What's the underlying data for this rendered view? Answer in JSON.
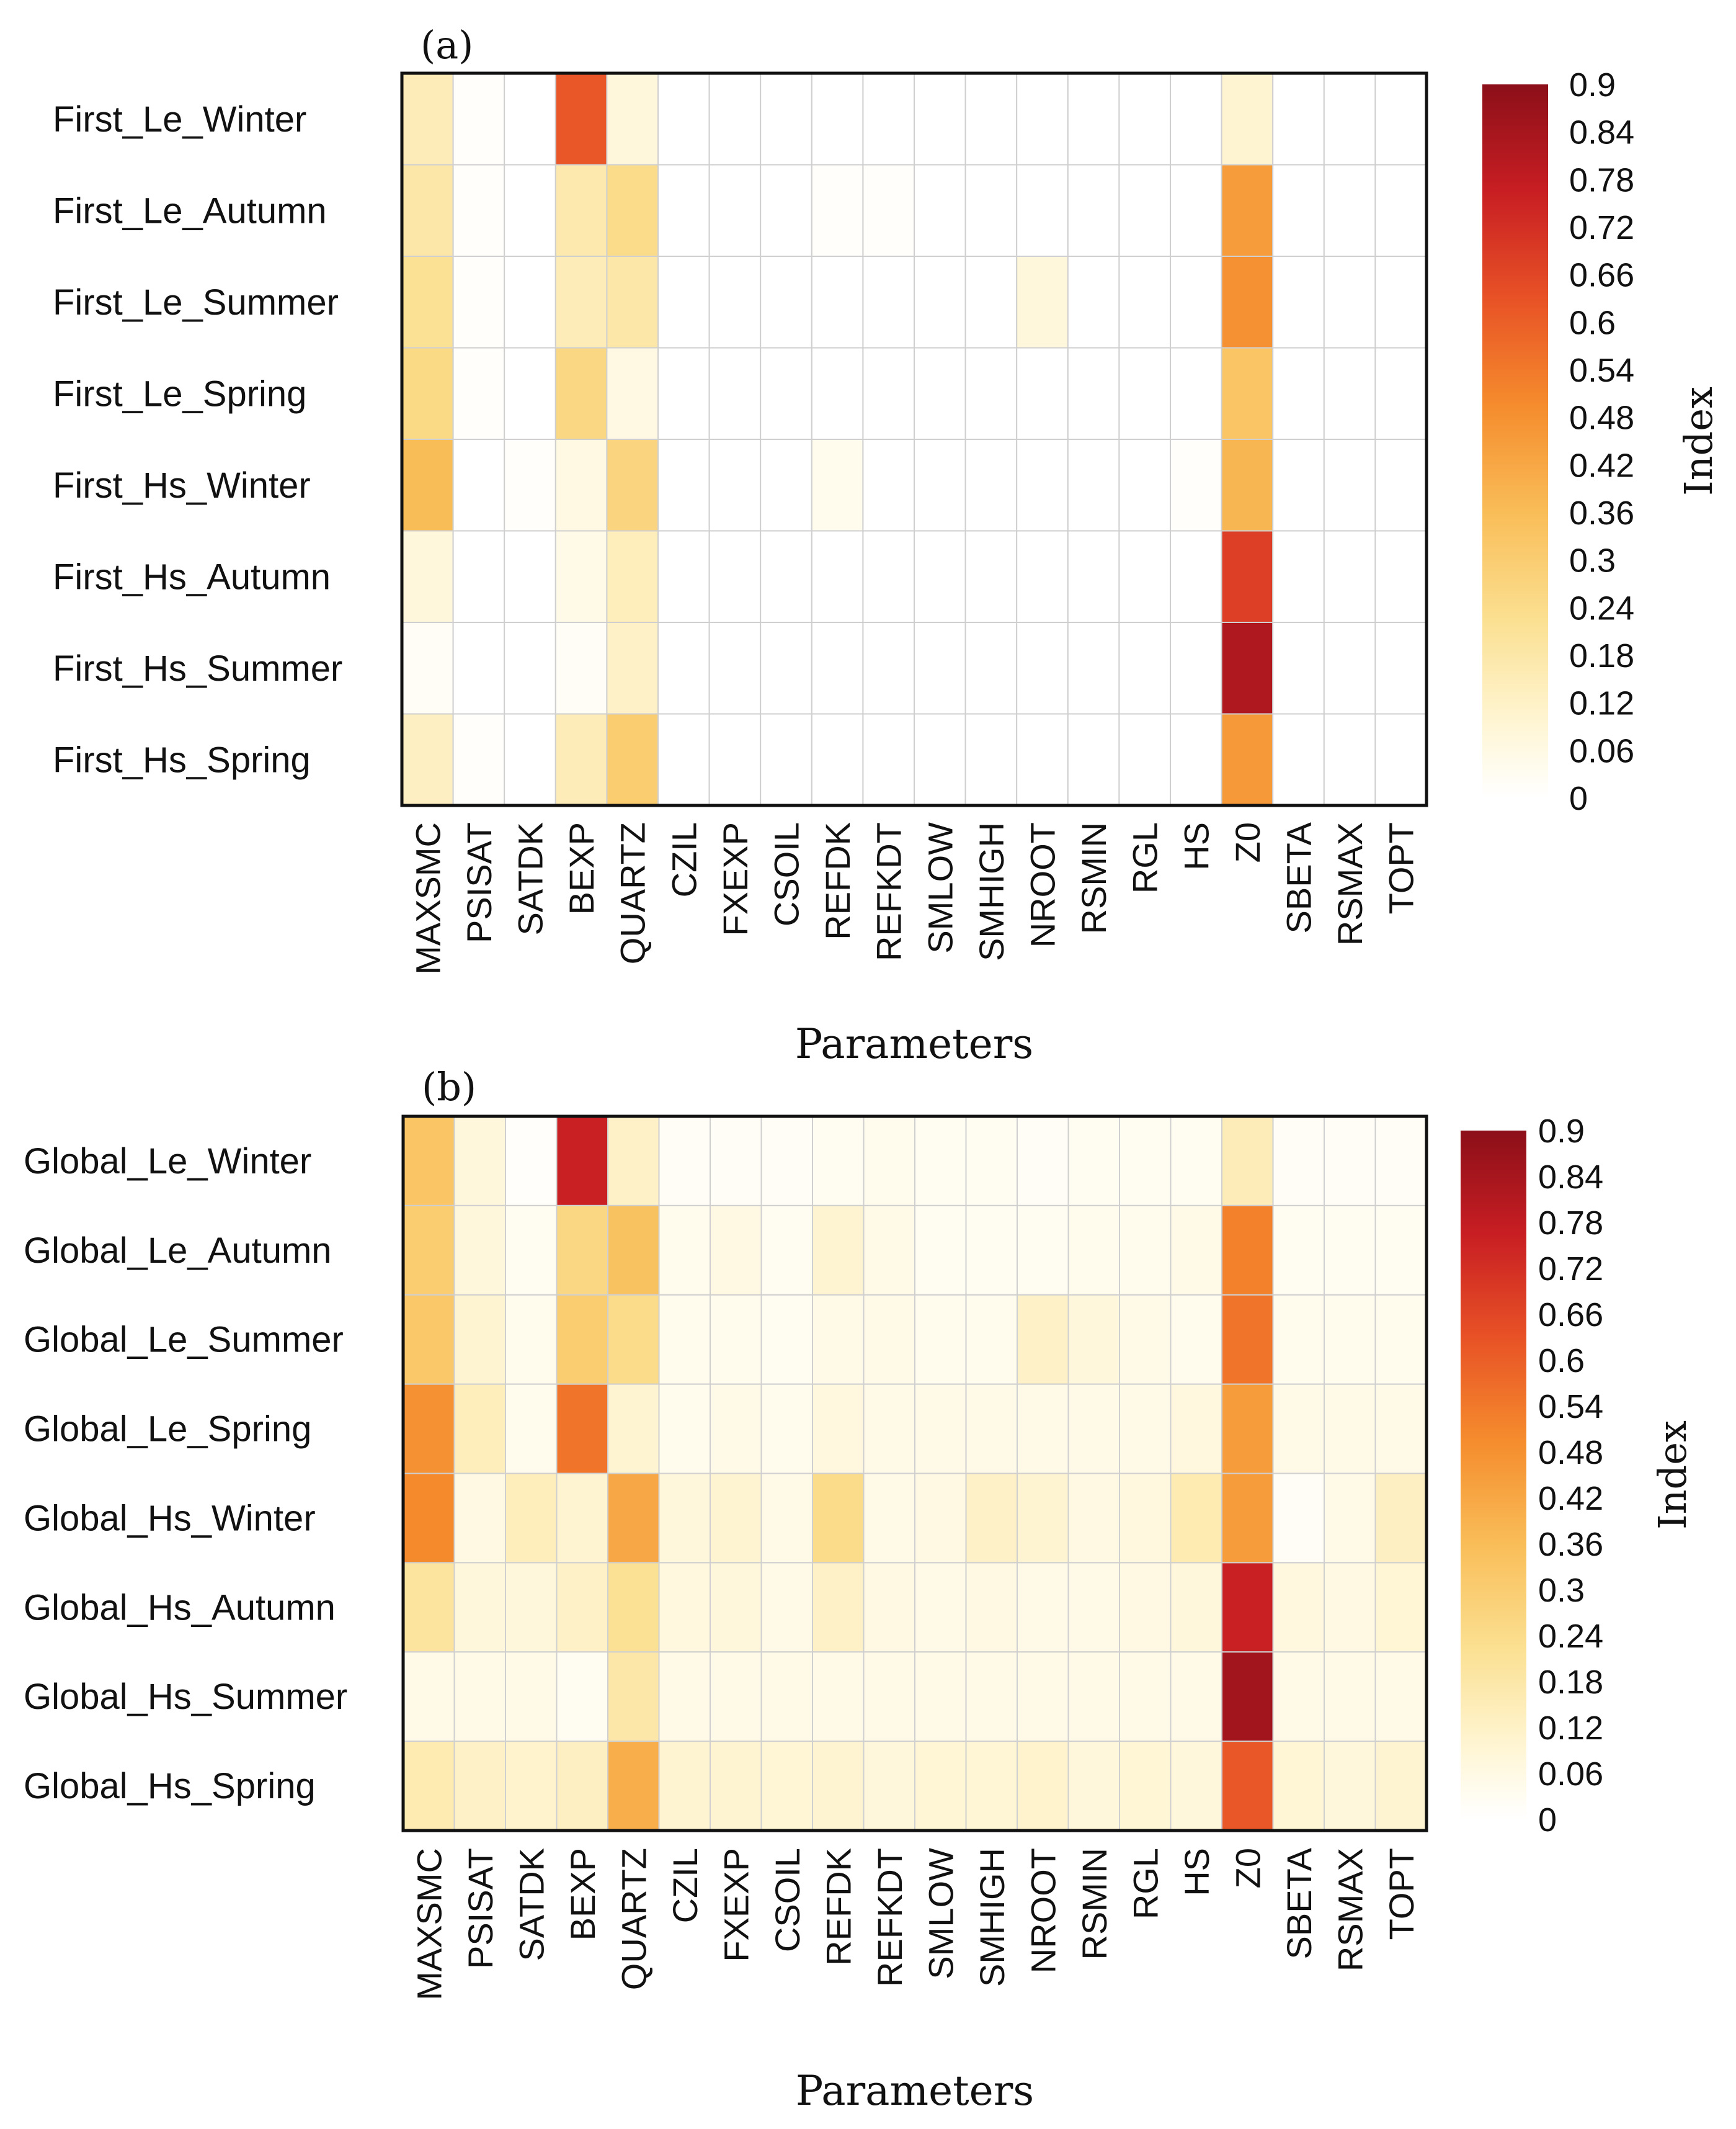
{
  "figure": {
    "panels": [
      "(a)",
      "(b)"
    ]
  },
  "chart_data": [
    {
      "type": "heatmap",
      "panel_label": "(a)",
      "title": "",
      "xlabel": "Parameters",
      "ylabel": "",
      "colorbar_label": "Index",
      "vmin": 0,
      "vmax": 0.9,
      "colorbar_ticks": [
        "0",
        "0.06",
        "0.12",
        "0.18",
        "0.24",
        "0.3",
        "0.36",
        "0.42",
        "0.48",
        "0.54",
        "0.6",
        "0.66",
        "0.72",
        "0.78",
        "0.84",
        "0.9"
      ],
      "columns": [
        "MAXSMC",
        "PSISAT",
        "SATDK",
        "BEXP",
        "QUARTZ",
        "CZIL",
        "FXEXP",
        "CSOIL",
        "REFDK",
        "REFKDT",
        "SMLOW",
        "SMHIGH",
        "NROOT",
        "RSMIN",
        "RGL",
        "HS",
        "Z0",
        "SBETA",
        "RSMAX",
        "TOPT"
      ],
      "rows": [
        "First_Le_Winter",
        "First_Le_Autumn",
        "First_Le_Summer",
        "First_Le_Spring",
        "First_Hs_Winter",
        "First_Hs_Autumn",
        "First_Hs_Summer",
        "First_Hs_Spring"
      ],
      "values": [
        [
          0.15,
          0.01,
          0.0,
          0.62,
          0.08,
          0.0,
          0.0,
          0.0,
          0.0,
          0.0,
          0.0,
          0.0,
          0.0,
          0.0,
          0.0,
          0.0,
          0.1,
          0.0,
          0.0,
          0.0
        ],
        [
          0.18,
          0.01,
          0.0,
          0.17,
          0.24,
          0.0,
          0.0,
          0.0,
          0.01,
          0.01,
          0.0,
          0.0,
          0.0,
          0.0,
          0.0,
          0.0,
          0.45,
          0.0,
          0.0,
          0.0
        ],
        [
          0.22,
          0.01,
          0.0,
          0.15,
          0.18,
          0.0,
          0.0,
          0.0,
          0.0,
          0.0,
          0.0,
          0.0,
          0.08,
          0.0,
          0.0,
          0.0,
          0.48,
          0.0,
          0.0,
          0.0
        ],
        [
          0.25,
          0.01,
          0.0,
          0.26,
          0.06,
          0.0,
          0.0,
          0.0,
          0.0,
          0.0,
          0.0,
          0.0,
          0.0,
          0.0,
          0.0,
          0.0,
          0.33,
          0.0,
          0.0,
          0.0
        ],
        [
          0.36,
          0.0,
          0.01,
          0.06,
          0.27,
          0.0,
          0.0,
          0.0,
          0.04,
          0.0,
          0.0,
          0.0,
          0.0,
          0.0,
          0.0,
          0.01,
          0.38,
          0.0,
          0.0,
          0.0
        ],
        [
          0.08,
          0.0,
          0.0,
          0.05,
          0.14,
          0.0,
          0.0,
          0.0,
          0.0,
          0.0,
          0.0,
          0.0,
          0.0,
          0.0,
          0.0,
          0.0,
          0.68,
          0.0,
          0.0,
          0.0
        ],
        [
          0.02,
          0.0,
          0.0,
          0.02,
          0.12,
          0.0,
          0.0,
          0.0,
          0.0,
          0.0,
          0.0,
          0.0,
          0.0,
          0.0,
          0.0,
          0.0,
          0.82,
          0.0,
          0.0,
          0.0
        ],
        [
          0.13,
          0.01,
          0.0,
          0.15,
          0.3,
          0.0,
          0.0,
          0.0,
          0.0,
          0.0,
          0.0,
          0.0,
          0.0,
          0.0,
          0.0,
          0.0,
          0.46,
          0.0,
          0.0,
          0.0
        ]
      ]
    },
    {
      "type": "heatmap",
      "panel_label": "(b)",
      "title": "",
      "xlabel": "Parameters",
      "ylabel": "",
      "colorbar_label": "Index",
      "vmin": 0,
      "vmax": 0.9,
      "colorbar_ticks": [
        "0",
        "0.06",
        "0.12",
        "0.18",
        "0.24",
        "0.3",
        "0.36",
        "0.42",
        "0.48",
        "0.54",
        "0.6",
        "0.66",
        "0.72",
        "0.78",
        "0.84",
        "0.9"
      ],
      "columns": [
        "MAXSMC",
        "PSISAT",
        "SATDK",
        "BEXP",
        "QUARTZ",
        "CZIL",
        "FXEXP",
        "CSOIL",
        "REFDK",
        "REFKDT",
        "SMLOW",
        "SMHIGH",
        "NROOT",
        "RSMIN",
        "RGL",
        "HS",
        "Z0",
        "SBETA",
        "RSMAX",
        "TOPT"
      ],
      "rows": [
        "Global_Le_Winter",
        "Global_Le_Autumn",
        "Global_Le_Summer",
        "Global_Le_Spring",
        "Global_Hs_Winter",
        "Global_Hs_Autumn",
        "Global_Hs_Summer",
        "Global_Hs_Spring"
      ],
      "values": [
        [
          0.33,
          0.08,
          0.01,
          0.76,
          0.12,
          0.02,
          0.02,
          0.02,
          0.03,
          0.04,
          0.03,
          0.03,
          0.02,
          0.03,
          0.03,
          0.03,
          0.15,
          0.02,
          0.02,
          0.02
        ],
        [
          0.3,
          0.08,
          0.03,
          0.26,
          0.34,
          0.04,
          0.06,
          0.03,
          0.1,
          0.05,
          0.03,
          0.03,
          0.03,
          0.04,
          0.04,
          0.05,
          0.52,
          0.03,
          0.03,
          0.03
        ],
        [
          0.32,
          0.1,
          0.04,
          0.3,
          0.24,
          0.04,
          0.04,
          0.03,
          0.05,
          0.05,
          0.04,
          0.04,
          0.12,
          0.08,
          0.05,
          0.04,
          0.55,
          0.04,
          0.04,
          0.04
        ],
        [
          0.48,
          0.14,
          0.04,
          0.55,
          0.1,
          0.04,
          0.05,
          0.04,
          0.07,
          0.05,
          0.05,
          0.05,
          0.05,
          0.05,
          0.05,
          0.07,
          0.45,
          0.05,
          0.05,
          0.05
        ],
        [
          0.5,
          0.06,
          0.14,
          0.1,
          0.42,
          0.08,
          0.1,
          0.05,
          0.24,
          0.05,
          0.06,
          0.12,
          0.1,
          0.06,
          0.07,
          0.16,
          0.45,
          0.02,
          0.05,
          0.13
        ],
        [
          0.2,
          0.08,
          0.08,
          0.12,
          0.22,
          0.07,
          0.08,
          0.05,
          0.12,
          0.06,
          0.05,
          0.06,
          0.05,
          0.05,
          0.06,
          0.08,
          0.76,
          0.07,
          0.06,
          0.09
        ],
        [
          0.05,
          0.05,
          0.05,
          0.03,
          0.18,
          0.05,
          0.05,
          0.05,
          0.05,
          0.05,
          0.05,
          0.05,
          0.05,
          0.05,
          0.05,
          0.05,
          0.85,
          0.05,
          0.05,
          0.05
        ],
        [
          0.16,
          0.12,
          0.11,
          0.13,
          0.4,
          0.1,
          0.1,
          0.09,
          0.1,
          0.08,
          0.09,
          0.09,
          0.11,
          0.08,
          0.09,
          0.08,
          0.62,
          0.09,
          0.08,
          0.1
        ]
      ]
    }
  ]
}
